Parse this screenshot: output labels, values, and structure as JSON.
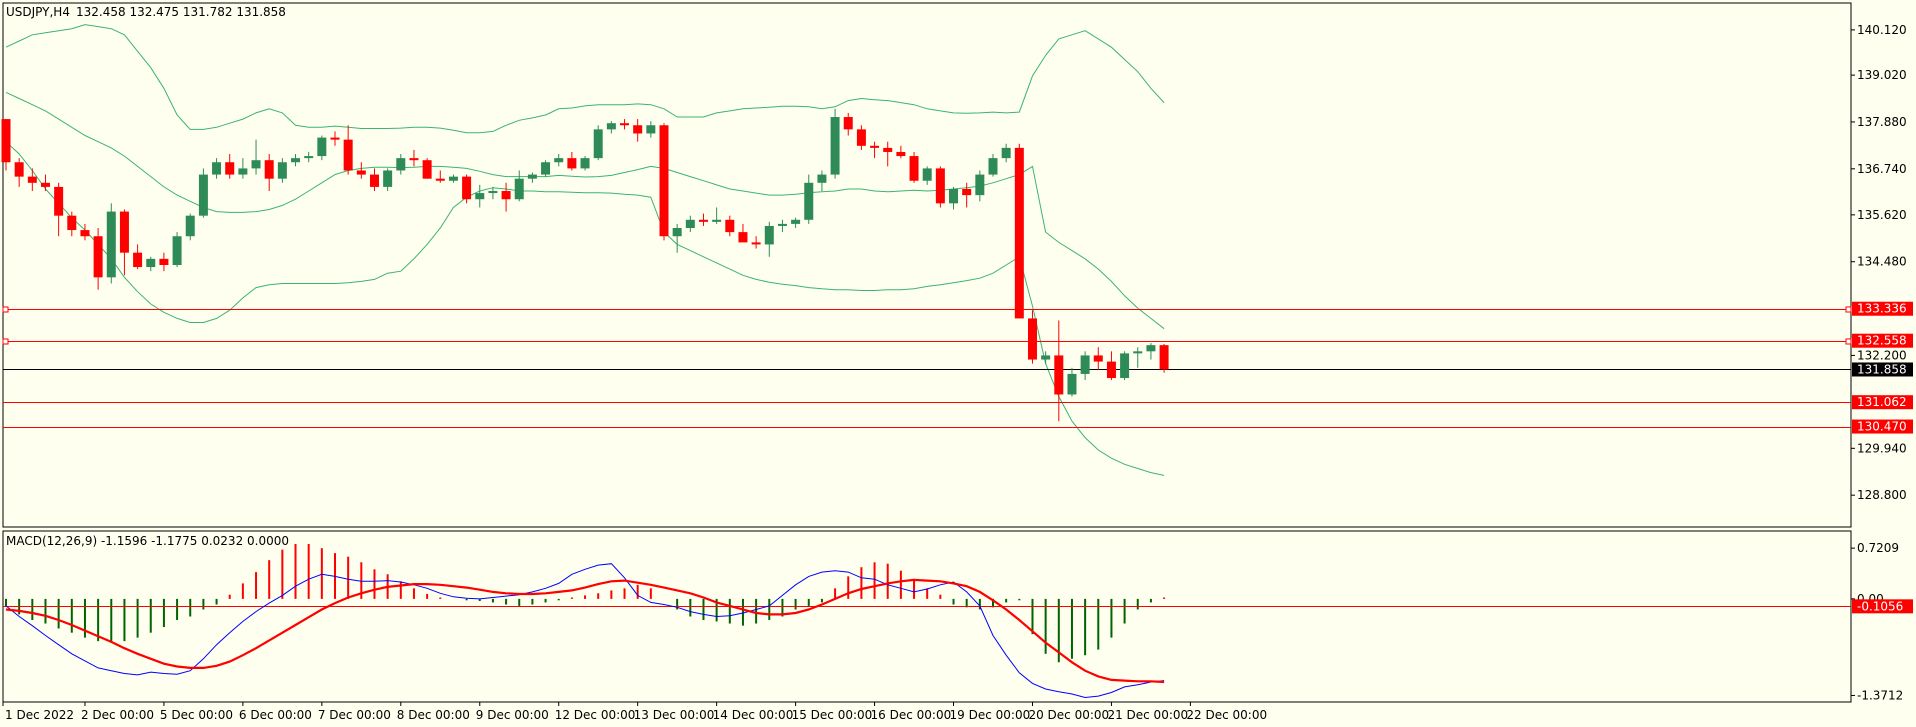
{
  "window": {
    "title": "USDJPY,H4",
    "ohlc": "132.458 132.475 131.782 131.858"
  },
  "colors": {
    "background": "#fffff0",
    "bull": "#2e8b57",
    "bear": "#ff0000",
    "bands": "#3cb371",
    "level": "#ff0000",
    "current_price_line": "#000000",
    "macd_main": "#0000ff",
    "macd_signal": "#ff0000",
    "hist_pos": "#ff0000",
    "hist_neg": "#006400"
  },
  "price_axis": {
    "ticks": [
      "140.120",
      "139.020",
      "137.880",
      "136.740",
      "135.620",
      "134.480",
      "132.200",
      "129.940",
      "128.800"
    ],
    "range": [
      128.05,
      140.75
    ]
  },
  "levels": [
    {
      "label": "133.336",
      "value": 133.336
    },
    {
      "label": "132.558",
      "value": 132.558
    },
    {
      "label": "131.062",
      "value": 131.062
    },
    {
      "label": "130.470",
      "value": 130.47
    }
  ],
  "current_price": {
    "label": "131.858",
    "value": 131.858
  },
  "macd": {
    "title": "MACD(12,26,9) -1.1596 -1.1775 0.0232 0.0000",
    "ticks": [
      "0.7209",
      "0.00",
      "-1.3712"
    ],
    "range": [
      -1.45,
      0.95
    ],
    "current_label": "-0.1056",
    "current_value": -0.1056
  },
  "time_axis": {
    "labels": [
      "1 Dec 2022",
      "2 Dec 00:00",
      "5 Dec 00:00",
      "6 Dec 00:00",
      "7 Dec 00:00",
      "8 Dec 00:00",
      "9 Dec 00:00",
      "12 Dec 00:00",
      "13 Dec 00:00",
      "14 Dec 00:00",
      "15 Dec 00:00",
      "16 Dec 00:00",
      "19 Dec 00:00",
      "20 Dec 00:00",
      "21 Dec 00:00",
      "22 Dec 00:00"
    ]
  },
  "chart_data": {
    "type": "candlestick",
    "symbol": "USDJPY",
    "timeframe": "H4",
    "candles": [
      [
        137.95,
        137.95,
        136.7,
        136.9
      ],
      [
        136.9,
        137.0,
        136.3,
        136.55
      ],
      [
        136.55,
        136.75,
        136.2,
        136.4
      ],
      [
        136.4,
        136.6,
        136.2,
        136.3
      ],
      [
        136.3,
        136.4,
        135.1,
        135.6
      ],
      [
        135.6,
        135.7,
        135.1,
        135.25
      ],
      [
        135.25,
        135.4,
        135.0,
        135.1
      ],
      [
        135.1,
        135.3,
        133.8,
        134.1
      ],
      [
        134.1,
        135.9,
        133.95,
        135.7
      ],
      [
        135.7,
        135.75,
        134.15,
        134.7
      ],
      [
        134.7,
        134.9,
        134.3,
        134.35
      ],
      [
        134.35,
        134.6,
        134.25,
        134.55
      ],
      [
        134.55,
        134.7,
        134.25,
        134.4
      ],
      [
        134.4,
        135.2,
        134.35,
        135.1
      ],
      [
        135.1,
        135.65,
        135.0,
        135.6
      ],
      [
        135.6,
        136.75,
        135.55,
        136.6
      ],
      [
        136.6,
        137.0,
        136.5,
        136.9
      ],
      [
        136.9,
        137.1,
        136.5,
        136.6
      ],
      [
        136.6,
        137.0,
        136.5,
        136.75
      ],
      [
        136.75,
        137.45,
        136.6,
        136.95
      ],
      [
        136.95,
        137.1,
        136.2,
        136.5
      ],
      [
        136.5,
        137.0,
        136.4,
        136.9
      ],
      [
        136.9,
        137.1,
        136.8,
        137.0
      ],
      [
        137.0,
        137.15,
        136.9,
        137.05
      ],
      [
        137.05,
        137.55,
        136.95,
        137.5
      ],
      [
        137.5,
        137.65,
        137.3,
        137.45
      ],
      [
        137.45,
        137.8,
        136.6,
        136.7
      ],
      [
        136.7,
        136.9,
        136.5,
        136.6
      ],
      [
        136.6,
        136.75,
        136.2,
        136.3
      ],
      [
        136.3,
        136.75,
        136.2,
        136.7
      ],
      [
        136.7,
        137.1,
        136.6,
        137.0
      ],
      [
        137.0,
        137.2,
        136.8,
        136.95
      ],
      [
        136.95,
        137.0,
        136.5,
        136.5
      ],
      [
        136.5,
        136.7,
        136.4,
        136.45
      ],
      [
        136.45,
        136.6,
        136.4,
        136.55
      ],
      [
        136.55,
        136.6,
        135.9,
        136.0
      ],
      [
        136.0,
        136.35,
        135.8,
        136.15
      ],
      [
        136.15,
        136.3,
        136.0,
        136.2
      ],
      [
        136.2,
        136.4,
        135.7,
        136.0
      ],
      [
        136.0,
        136.7,
        135.95,
        136.5
      ],
      [
        136.5,
        136.65,
        136.4,
        136.6
      ],
      [
        136.6,
        136.95,
        136.55,
        136.9
      ],
      [
        136.9,
        137.1,
        136.8,
        137.0
      ],
      [
        137.0,
        137.15,
        136.7,
        136.75
      ],
      [
        136.75,
        137.05,
        136.7,
        137.0
      ],
      [
        137.0,
        137.8,
        136.95,
        137.7
      ],
      [
        137.7,
        137.9,
        137.6,
        137.85
      ],
      [
        137.85,
        137.95,
        137.7,
        137.8
      ],
      [
        137.8,
        137.95,
        137.4,
        137.6
      ],
      [
        137.6,
        137.9,
        137.5,
        137.8
      ],
      [
        137.8,
        137.85,
        135.0,
        135.1
      ],
      [
        135.1,
        135.4,
        134.7,
        135.3
      ],
      [
        135.3,
        135.6,
        135.2,
        135.5
      ],
      [
        135.5,
        135.65,
        135.35,
        135.45
      ],
      [
        135.45,
        135.8,
        135.4,
        135.5
      ],
      [
        135.5,
        135.6,
        135.1,
        135.2
      ],
      [
        135.2,
        135.4,
        135.0,
        134.95
      ],
      [
        134.95,
        135.1,
        134.8,
        134.9
      ],
      [
        134.9,
        135.45,
        134.6,
        135.35
      ],
      [
        135.35,
        135.5,
        135.2,
        135.4
      ],
      [
        135.4,
        135.55,
        135.3,
        135.5
      ],
      [
        135.5,
        136.6,
        135.4,
        136.4
      ],
      [
        136.4,
        136.7,
        136.2,
        136.6
      ],
      [
        136.6,
        138.2,
        136.5,
        138.0
      ],
      [
        138.0,
        138.1,
        137.55,
        137.7
      ],
      [
        137.7,
        137.8,
        137.2,
        137.3
      ],
      [
        137.3,
        137.4,
        137.0,
        137.25
      ],
      [
        137.25,
        137.4,
        136.8,
        137.15
      ],
      [
        137.15,
        137.3,
        137.0,
        137.05
      ],
      [
        137.05,
        137.15,
        136.4,
        136.45
      ],
      [
        136.45,
        136.8,
        136.35,
        136.75
      ],
      [
        136.75,
        136.8,
        135.8,
        135.9
      ],
      [
        135.9,
        136.3,
        135.75,
        136.25
      ],
      [
        136.25,
        136.4,
        135.8,
        136.1
      ],
      [
        136.1,
        136.7,
        135.95,
        136.6
      ],
      [
        136.6,
        137.1,
        136.55,
        137.0
      ],
      [
        137.0,
        137.35,
        136.9,
        137.25
      ],
      [
        137.25,
        137.35,
        133.1,
        133.1
      ],
      [
        133.1,
        133.3,
        132.0,
        132.1
      ],
      [
        132.1,
        132.3,
        132.0,
        132.2
      ],
      [
        132.2,
        133.05,
        130.6,
        131.25
      ],
      [
        131.25,
        131.9,
        131.2,
        131.75
      ],
      [
        131.75,
        132.3,
        131.6,
        132.2
      ],
      [
        132.2,
        132.4,
        131.85,
        132.05
      ],
      [
        132.05,
        132.3,
        131.6,
        131.65
      ],
      [
        131.65,
        132.3,
        131.6,
        132.25
      ],
      [
        132.25,
        132.4,
        131.9,
        132.3
      ],
      [
        132.3,
        132.5,
        132.1,
        132.45
      ],
      [
        132.45,
        132.48,
        131.78,
        131.86
      ]
    ],
    "bollinger": {
      "upper": [
        139.7,
        139.85,
        140.0,
        140.05,
        140.1,
        140.15,
        140.25,
        140.2,
        140.15,
        140.0,
        139.6,
        139.2,
        138.7,
        138.05,
        137.7,
        137.7,
        137.75,
        137.85,
        137.95,
        138.1,
        138.2,
        138.1,
        137.8,
        137.75,
        137.75,
        137.78,
        137.75,
        137.72,
        137.72,
        137.72,
        137.73,
        137.75,
        137.75,
        137.73,
        137.68,
        137.62,
        137.62,
        137.65,
        137.8,
        137.92,
        137.98,
        138.05,
        138.2,
        138.22,
        138.27,
        138.3,
        138.3,
        138.3,
        138.32,
        138.3,
        138.2,
        138.0,
        138.0,
        138.0,
        138.1,
        138.15,
        138.2,
        138.22,
        138.24,
        138.26,
        138.26,
        138.25,
        138.2,
        138.25,
        138.4,
        138.45,
        138.42,
        138.4,
        138.35,
        138.3,
        138.2,
        138.15,
        138.1,
        138.09,
        138.1,
        138.12,
        138.1,
        138.12,
        139.0,
        139.5,
        139.9,
        140.0,
        140.1,
        139.9,
        139.7,
        139.4,
        139.1,
        138.7,
        138.35
      ],
      "middle": [
        138.6,
        138.45,
        138.3,
        138.15,
        137.95,
        137.75,
        137.55,
        137.4,
        137.25,
        137.05,
        136.8,
        136.55,
        136.3,
        136.1,
        135.95,
        135.8,
        135.7,
        135.68,
        135.68,
        135.7,
        135.75,
        135.85,
        136.0,
        136.2,
        136.4,
        136.6,
        136.7,
        136.75,
        136.78,
        136.78,
        136.77,
        136.78,
        136.8,
        136.8,
        136.78,
        136.75,
        136.68,
        136.6,
        136.55,
        136.55,
        136.55,
        136.55,
        136.58,
        136.56,
        136.54,
        136.55,
        136.58,
        136.65,
        136.72,
        136.8,
        136.75,
        136.65,
        136.55,
        136.45,
        136.35,
        136.25,
        136.2,
        136.15,
        136.1,
        136.1,
        136.12,
        136.16,
        136.18,
        136.2,
        136.25,
        136.25,
        136.2,
        136.18,
        136.2,
        136.22,
        136.2,
        136.22,
        136.25,
        136.28,
        136.32,
        136.4,
        136.5,
        136.6,
        136.8,
        135.2,
        134.95,
        134.75,
        134.55,
        134.3,
        134.0,
        133.65,
        133.35,
        133.1,
        132.85
      ],
      "lower": [
        137.4,
        137.1,
        136.7,
        136.25,
        135.9,
        135.55,
        135.25,
        134.9,
        134.55,
        134.1,
        133.75,
        133.45,
        133.25,
        133.1,
        133.0,
        133.0,
        133.1,
        133.3,
        133.6,
        133.85,
        133.92,
        133.95,
        133.95,
        133.95,
        133.95,
        133.95,
        133.97,
        134.0,
        134.05,
        134.2,
        134.25,
        134.55,
        134.9,
        135.3,
        135.8,
        136.05,
        136.2,
        136.28,
        136.25,
        136.2,
        136.2,
        136.18,
        136.18,
        136.17,
        136.16,
        136.16,
        136.15,
        136.12,
        136.1,
        136.05,
        135.2,
        134.9,
        134.75,
        134.6,
        134.45,
        134.3,
        134.15,
        134.05,
        133.98,
        133.93,
        133.9,
        133.85,
        133.82,
        133.8,
        133.8,
        133.78,
        133.78,
        133.8,
        133.8,
        133.82,
        133.88,
        133.92,
        133.97,
        134.02,
        134.08,
        134.2,
        134.4,
        134.6,
        133.4,
        132.0,
        131.2,
        130.6,
        130.2,
        129.9,
        129.7,
        129.55,
        129.45,
        129.35,
        129.28
      ]
    },
    "levels": [
      133.336,
      132.558,
      131.062,
      130.47
    ],
    "macd": {
      "main": [
        -0.1,
        -0.25,
        -0.38,
        -0.52,
        -0.65,
        -0.78,
        -0.88,
        -0.98,
        -1.02,
        -1.06,
        -1.08,
        -1.04,
        -1.06,
        -1.07,
        -1.02,
        -0.85,
        -0.65,
        -0.48,
        -0.32,
        -0.18,
        -0.06,
        0.05,
        0.18,
        0.28,
        0.35,
        0.32,
        0.28,
        0.25,
        0.25,
        0.26,
        0.24,
        0.2,
        0.15,
        0.08,
        0.03,
        0.01,
        0.0,
        0.02,
        0.04,
        0.06,
        0.1,
        0.15,
        0.22,
        0.35,
        0.42,
        0.48,
        0.5,
        0.3,
        0.05,
        -0.05,
        -0.08,
        -0.12,
        -0.18,
        -0.22,
        -0.25,
        -0.24,
        -0.2,
        -0.15,
        -0.1,
        0.05,
        0.2,
        0.32,
        0.38,
        0.4,
        0.38,
        0.3,
        0.28,
        0.2,
        0.15,
        0.1,
        0.14,
        0.2,
        0.24,
        0.1,
        -0.1,
        -0.52,
        -0.8,
        -1.05,
        -1.2,
        -1.28,
        -1.32,
        -1.35,
        -1.4,
        -1.38,
        -1.33,
        -1.25,
        -1.22,
        -1.18,
        -1.16
      ],
      "signal": [
        -0.15,
        -0.17,
        -0.2,
        -0.24,
        -0.3,
        -0.37,
        -0.45,
        -0.53,
        -0.61,
        -0.7,
        -0.78,
        -0.85,
        -0.92,
        -0.96,
        -0.98,
        -0.98,
        -0.95,
        -0.89,
        -0.8,
        -0.7,
        -0.59,
        -0.48,
        -0.37,
        -0.26,
        -0.15,
        -0.06,
        0.02,
        0.08,
        0.13,
        0.17,
        0.19,
        0.21,
        0.21,
        0.2,
        0.18,
        0.16,
        0.13,
        0.1,
        0.08,
        0.07,
        0.07,
        0.08,
        0.1,
        0.12,
        0.16,
        0.21,
        0.25,
        0.26,
        0.23,
        0.2,
        0.16,
        0.12,
        0.08,
        0.02,
        -0.05,
        -0.1,
        -0.15,
        -0.2,
        -0.22,
        -0.22,
        -0.2,
        -0.15,
        -0.08,
        0.0,
        0.08,
        0.14,
        0.18,
        0.22,
        0.25,
        0.27,
        0.26,
        0.25,
        0.22,
        0.18,
        0.1,
        -0.02,
        -0.15,
        -0.3,
        -0.46,
        -0.62,
        -0.76,
        -0.9,
        -1.02,
        -1.1,
        -1.15,
        -1.16,
        -1.17,
        -1.17,
        -1.18
      ],
      "histogram": [
        -0.1,
        -0.22,
        -0.3,
        -0.35,
        -0.42,
        -0.48,
        -0.55,
        -0.6,
        -0.62,
        -0.6,
        -0.55,
        -0.48,
        -0.4,
        -0.3,
        -0.25,
        -0.15,
        -0.08,
        0.06,
        0.22,
        0.38,
        0.55,
        0.7,
        0.78,
        0.78,
        0.72,
        0.65,
        0.6,
        0.52,
        0.42,
        0.35,
        0.25,
        0.15,
        0.07,
        0.02,
        0.0,
        -0.02,
        -0.03,
        -0.05,
        -0.08,
        -0.1,
        -0.08,
        -0.05,
        -0.02,
        0.02,
        0.05,
        0.08,
        0.12,
        0.15,
        0.2,
        0.15,
        0.0,
        -0.15,
        -0.25,
        -0.3,
        -0.32,
        -0.35,
        -0.38,
        -0.35,
        -0.3,
        -0.25,
        -0.15,
        -0.1,
        -0.05,
        0.15,
        0.32,
        0.45,
        0.52,
        0.5,
        0.4,
        0.28,
        0.15,
        0.06,
        -0.08,
        -0.12,
        -0.15,
        -0.12,
        -0.05,
        -0.02,
        -0.5,
        -0.78,
        -0.9,
        -0.85,
        -0.8,
        -0.72,
        -0.55,
        -0.35,
        -0.15,
        -0.05,
        0.02
      ]
    },
    "time_labels": [
      "1 Dec 2022",
      "2 Dec 00:00",
      "5 Dec 00:00",
      "6 Dec 00:00",
      "7 Dec 00:00",
      "8 Dec 00:00",
      "9 Dec 00:00",
      "12 Dec 00:00",
      "13 Dec 00:00",
      "14 Dec 00:00",
      "15 Dec 00:00",
      "16 Dec 00:00",
      "19 Dec 00:00",
      "20 Dec 00:00",
      "21 Dec 00:00",
      "22 Dec 00:00"
    ]
  }
}
